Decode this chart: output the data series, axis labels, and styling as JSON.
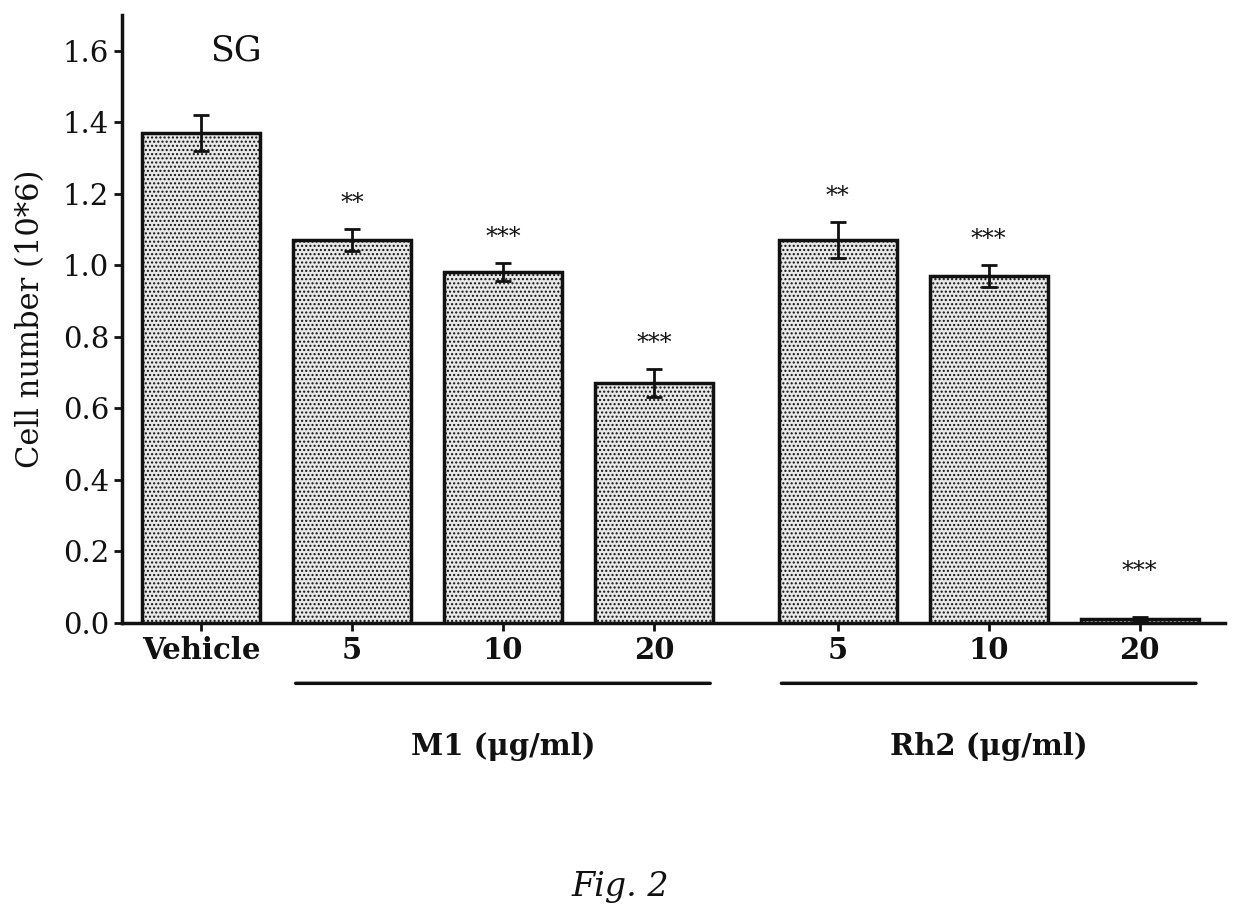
{
  "categories": [
    "Vehicle",
    "5",
    "10",
    "20",
    "5",
    "10",
    "20"
  ],
  "values": [
    1.37,
    1.07,
    0.98,
    0.67,
    1.07,
    0.97,
    0.01
  ],
  "errors": [
    0.05,
    0.03,
    0.025,
    0.04,
    0.05,
    0.03,
    0.005
  ],
  "significance": [
    "",
    "**",
    "***",
    "***",
    "**",
    "***",
    "***"
  ],
  "bar_color": "#e8e8e8",
  "bar_edge_color": "#111111",
  "bar_linewidth": 2.5,
  "ylabel": "Cell number (10*6)",
  "ylim": [
    0,
    1.7
  ],
  "yticks": [
    0.0,
    0.2,
    0.4,
    0.6,
    0.8,
    1.0,
    1.2,
    1.4,
    1.6
  ],
  "sg_label": "SG",
  "fig_label": "Fig. 2",
  "group1_label": "M1 (μg/ml)",
  "group2_label": "Rh2 (μg/ml)",
  "background_color": "#ffffff",
  "figsize": [
    12.4,
    9.24
  ],
  "dpi": 100,
  "x_positions": [
    0,
    1.15,
    2.3,
    3.45,
    4.85,
    6.0,
    7.15
  ],
  "bar_width": 0.9,
  "xlim": [
    -0.6,
    7.8
  ]
}
